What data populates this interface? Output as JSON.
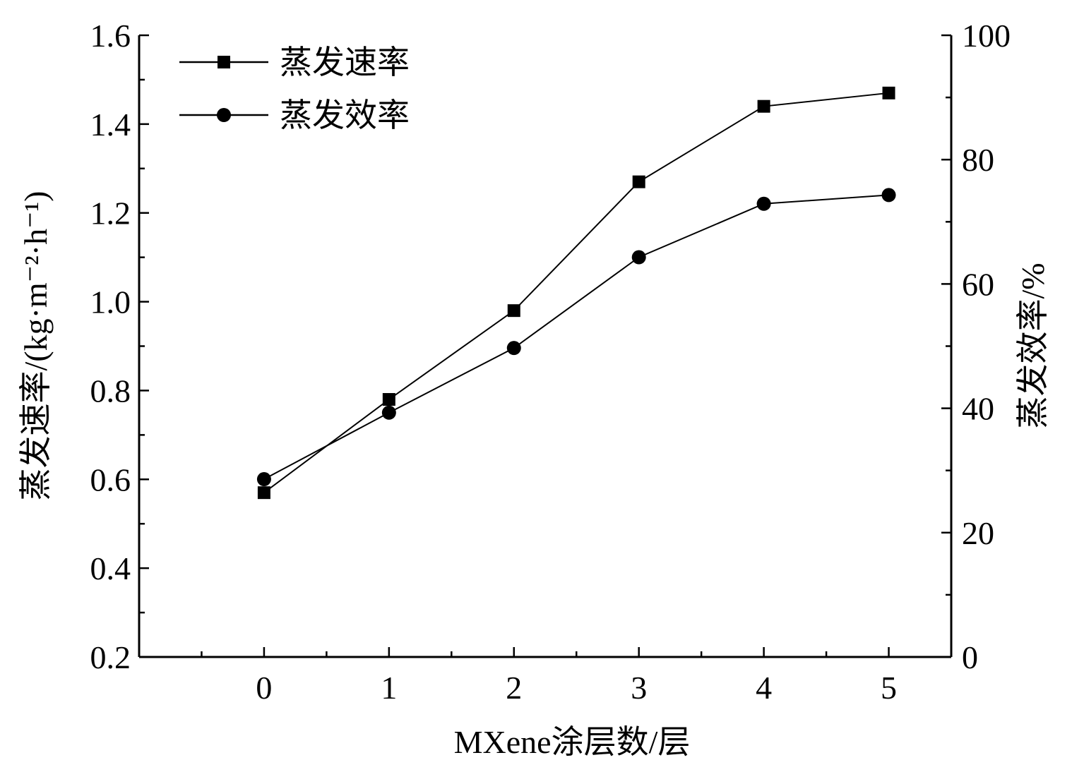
{
  "chart_data": {
    "type": "line",
    "xlabel": "MXene涂层数/层",
    "ylabel_left": "蒸发速率/(kg·m⁻²·h⁻¹)",
    "ylabel_right": "蒸发效率/%",
    "x": [
      0,
      1,
      2,
      3,
      4,
      5
    ],
    "xlim": [
      -1,
      5.5
    ],
    "xticks": [
      "0",
      "1",
      "2",
      "3",
      "4",
      "5"
    ],
    "ylim_left": [
      0.2,
      1.6
    ],
    "yticks_left": [
      "0.2",
      "0.4",
      "0.6",
      "0.8",
      "1.0",
      "1.2",
      "1.4",
      "1.6"
    ],
    "ylim_right": [
      0,
      100
    ],
    "yticks_right": [
      "0",
      "20",
      "40",
      "60",
      "80",
      "100"
    ],
    "legend_placement": "top-left",
    "grid": false,
    "series": [
      {
        "name": "蒸发速率",
        "axis": "left",
        "marker": "square",
        "values": [
          0.57,
          0.78,
          0.98,
          1.27,
          1.44,
          1.47
        ]
      },
      {
        "name": "蒸发效率",
        "axis": "right",
        "marker": "circle",
        "values": [
          28.6,
          39.3,
          49.7,
          64.3,
          72.9,
          74.3
        ]
      }
    ]
  }
}
